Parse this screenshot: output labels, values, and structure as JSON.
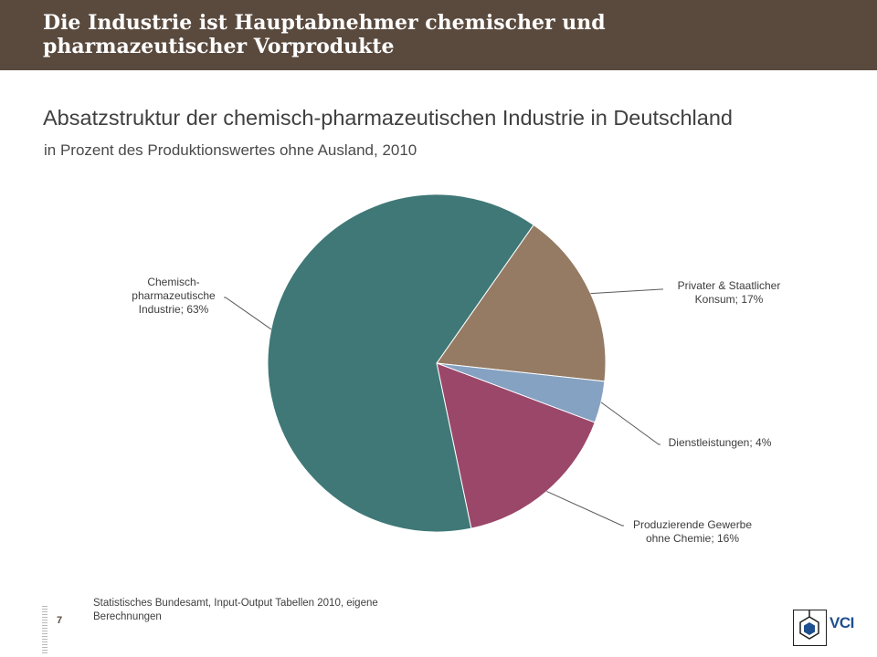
{
  "header": {
    "title": "Die Industrie ist Hauptabnehmer chemischer und\npharmazeutischer Vorprodukte"
  },
  "chart_data": {
    "type": "pie",
    "title": "Absatzstruktur der chemisch-pharmazeutischen Industrie in Deutschland",
    "subtitle": "in Prozent des Produktionswertes ohne Ausland, 2010",
    "slices": [
      {
        "name": "Privater & Staatlicher Konsum",
        "value": 17,
        "label": "Privater & Staatlicher\nKonsum; 17%",
        "color": "#957b63"
      },
      {
        "name": "Dienstleistungen",
        "value": 4,
        "label": "Dienstleistungen; 4%",
        "color": "#86a2c2"
      },
      {
        "name": "Produzierende Gewerbe ohne Chemie",
        "value": 16,
        "label": "Produzierende Gewerbe\nohne Chemie;  16%",
        "color": "#9b4769"
      },
      {
        "name": "Chemisch-pharmazeutische Industrie",
        "value": 63,
        "label": "Chemisch-\npharmazeutische\nIndustrie; 63%",
        "color": "#3f7877"
      }
    ]
  },
  "footer": {
    "source": "Statistisches Bundesamt, Input-Output Tabellen 2010, eigene Berechnungen",
    "page_number": "7",
    "logo_text": "VCI"
  }
}
